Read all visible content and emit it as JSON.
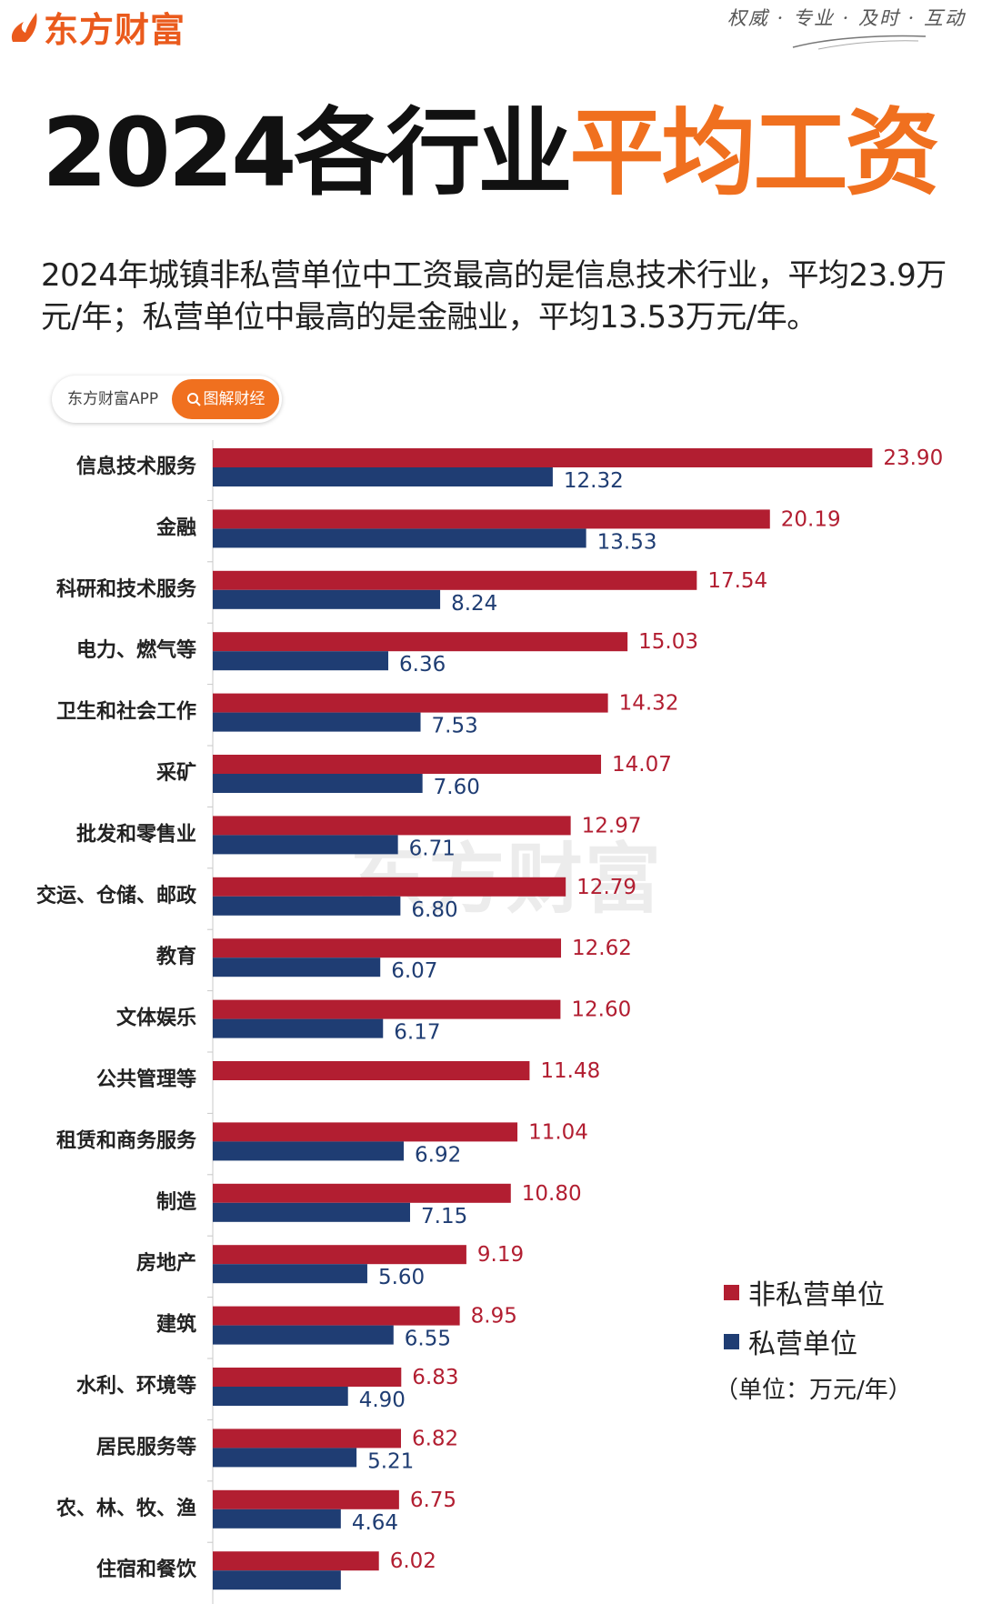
{
  "header": {
    "brand": "东方财富",
    "slogan": "权威 · 专业 · 及时 · 互动"
  },
  "title": {
    "part1": "2024各行业",
    "part2": "平均工资"
  },
  "subtitle": "2024年城镇非私营单位中工资最高的是信息技术行业，平均23.9万元/年；私营单位中最高的是金融业，平均13.53万元/年。",
  "badge": {
    "left": "东方财富APP",
    "right": "图解财经"
  },
  "watermark": "东方财富",
  "colors": {
    "brand": "#ea5a1c",
    "accent": "#f0701f",
    "non_private": "#b21e31",
    "private": "#1f3d73"
  },
  "chart_data": {
    "type": "bar",
    "orientation": "horizontal",
    "categories": [
      "信息技术服务",
      "金融",
      "科研和技术服务",
      "电力、燃气等",
      "卫生和社会工作",
      "采矿",
      "批发和零售业",
      "交运、仓储、邮政",
      "教育",
      "文体娱乐",
      "公共管理等",
      "租赁和商务服务",
      "制造",
      "房地产",
      "建筑",
      "水利、环境等",
      "居民服务等",
      "农、林、牧、渔",
      "住宿和餐饮"
    ],
    "series": [
      {
        "name": "非私营单位",
        "values": [
          23.9,
          20.19,
          17.54,
          15.03,
          14.32,
          14.07,
          12.97,
          12.79,
          12.62,
          12.6,
          11.48,
          11.04,
          10.8,
          9.19,
          8.95,
          6.83,
          6.82,
          6.75,
          6.02
        ]
      },
      {
        "name": "私营单位",
        "values": [
          12.32,
          13.53,
          8.24,
          6.36,
          7.53,
          7.6,
          6.71,
          6.8,
          6.07,
          6.17,
          null,
          6.92,
          7.15,
          5.6,
          6.55,
          4.9,
          5.21,
          4.64,
          4.64
        ]
      }
    ],
    "value_labels": {
      "non_private": [
        "23.90",
        "20.19",
        "17.54",
        "15.03",
        "14.32",
        "14.07",
        "12.97",
        "12.79",
        "12.62",
        "12.60",
        "11.48",
        "11.04",
        "10.80",
        "9.19",
        "8.95",
        "6.83",
        "6.82",
        "6.75",
        "6.02"
      ],
      "private": [
        "12.32",
        "13.53",
        "8.24",
        "6.36",
        "7.53",
        "7.60",
        "6.71",
        "6.80",
        "6.07",
        "6.17",
        "",
        "6.92",
        "7.15",
        "5.60",
        "6.55",
        "4.90",
        "5.21",
        "4.64",
        ""
      ]
    },
    "unit": "（单位：万元/年）",
    "xlim": [
      0,
      25
    ],
    "grid": false,
    "legend_position": "bottom-right"
  },
  "legend": {
    "items": [
      "非私营单位",
      "私营单位"
    ],
    "unit": "（单位：万元/年）"
  }
}
